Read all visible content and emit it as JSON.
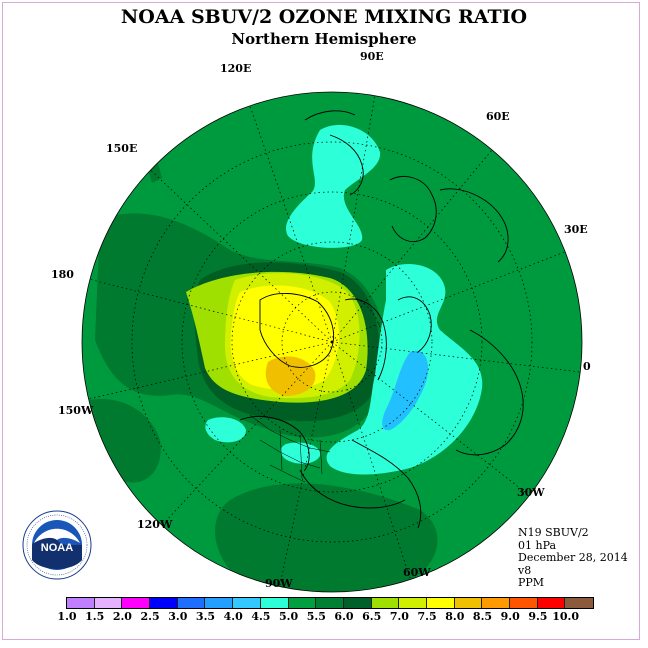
{
  "header": {
    "title": "NOAA SBUV/2 OZONE MIXING RATIO",
    "subtitle": "Northern Hemisphere"
  },
  "longitude_labels": {
    "lon_90e": "90E",
    "lon_60e": "60E",
    "lon_30e": "30E",
    "lon_0": "0",
    "lon_30w": "30W",
    "lon_60w": "60W",
    "lon_90w": "90W",
    "lon_120w": "120W",
    "lon_150w": "150W",
    "lon_180": "180",
    "lon_150e": "150E",
    "lon_120e": "120E"
  },
  "info": {
    "satellite": "N19 SBUV/2",
    "level": "01 hPa",
    "date": "December 28, 2014",
    "version": "v8",
    "units": "PPM"
  },
  "logo": {
    "text": "NOAA",
    "ring_text": "NATIONAL OCEANIC AND ATMOSPHERIC ADMINISTRATION · U.S. DEPARTMENT OF COMMERCE"
  },
  "colorbar": {
    "colors": [
      "#bf7fff",
      "#e5b2ff",
      "#ff00ff",
      "#0000ff",
      "#1e6fff",
      "#23a0ff",
      "#33c8ff",
      "#2dffd8",
      "#00a040",
      "#008033",
      "#00602a",
      "#a0e000",
      "#d0f000",
      "#ffff00",
      "#f0c000",
      "#ff9900",
      "#ff5500",
      "#ff0000",
      "#8b5a3c"
    ],
    "ticks": [
      "1.0",
      "1.5",
      "2.0",
      "2.5",
      "3.0",
      "3.5",
      "4.0",
      "4.5",
      "5.0",
      "5.5",
      "6.0",
      "6.5",
      "7.0",
      "7.5",
      "8.0",
      "8.5",
      "9.0",
      "9.5",
      "10.0"
    ]
  }
}
